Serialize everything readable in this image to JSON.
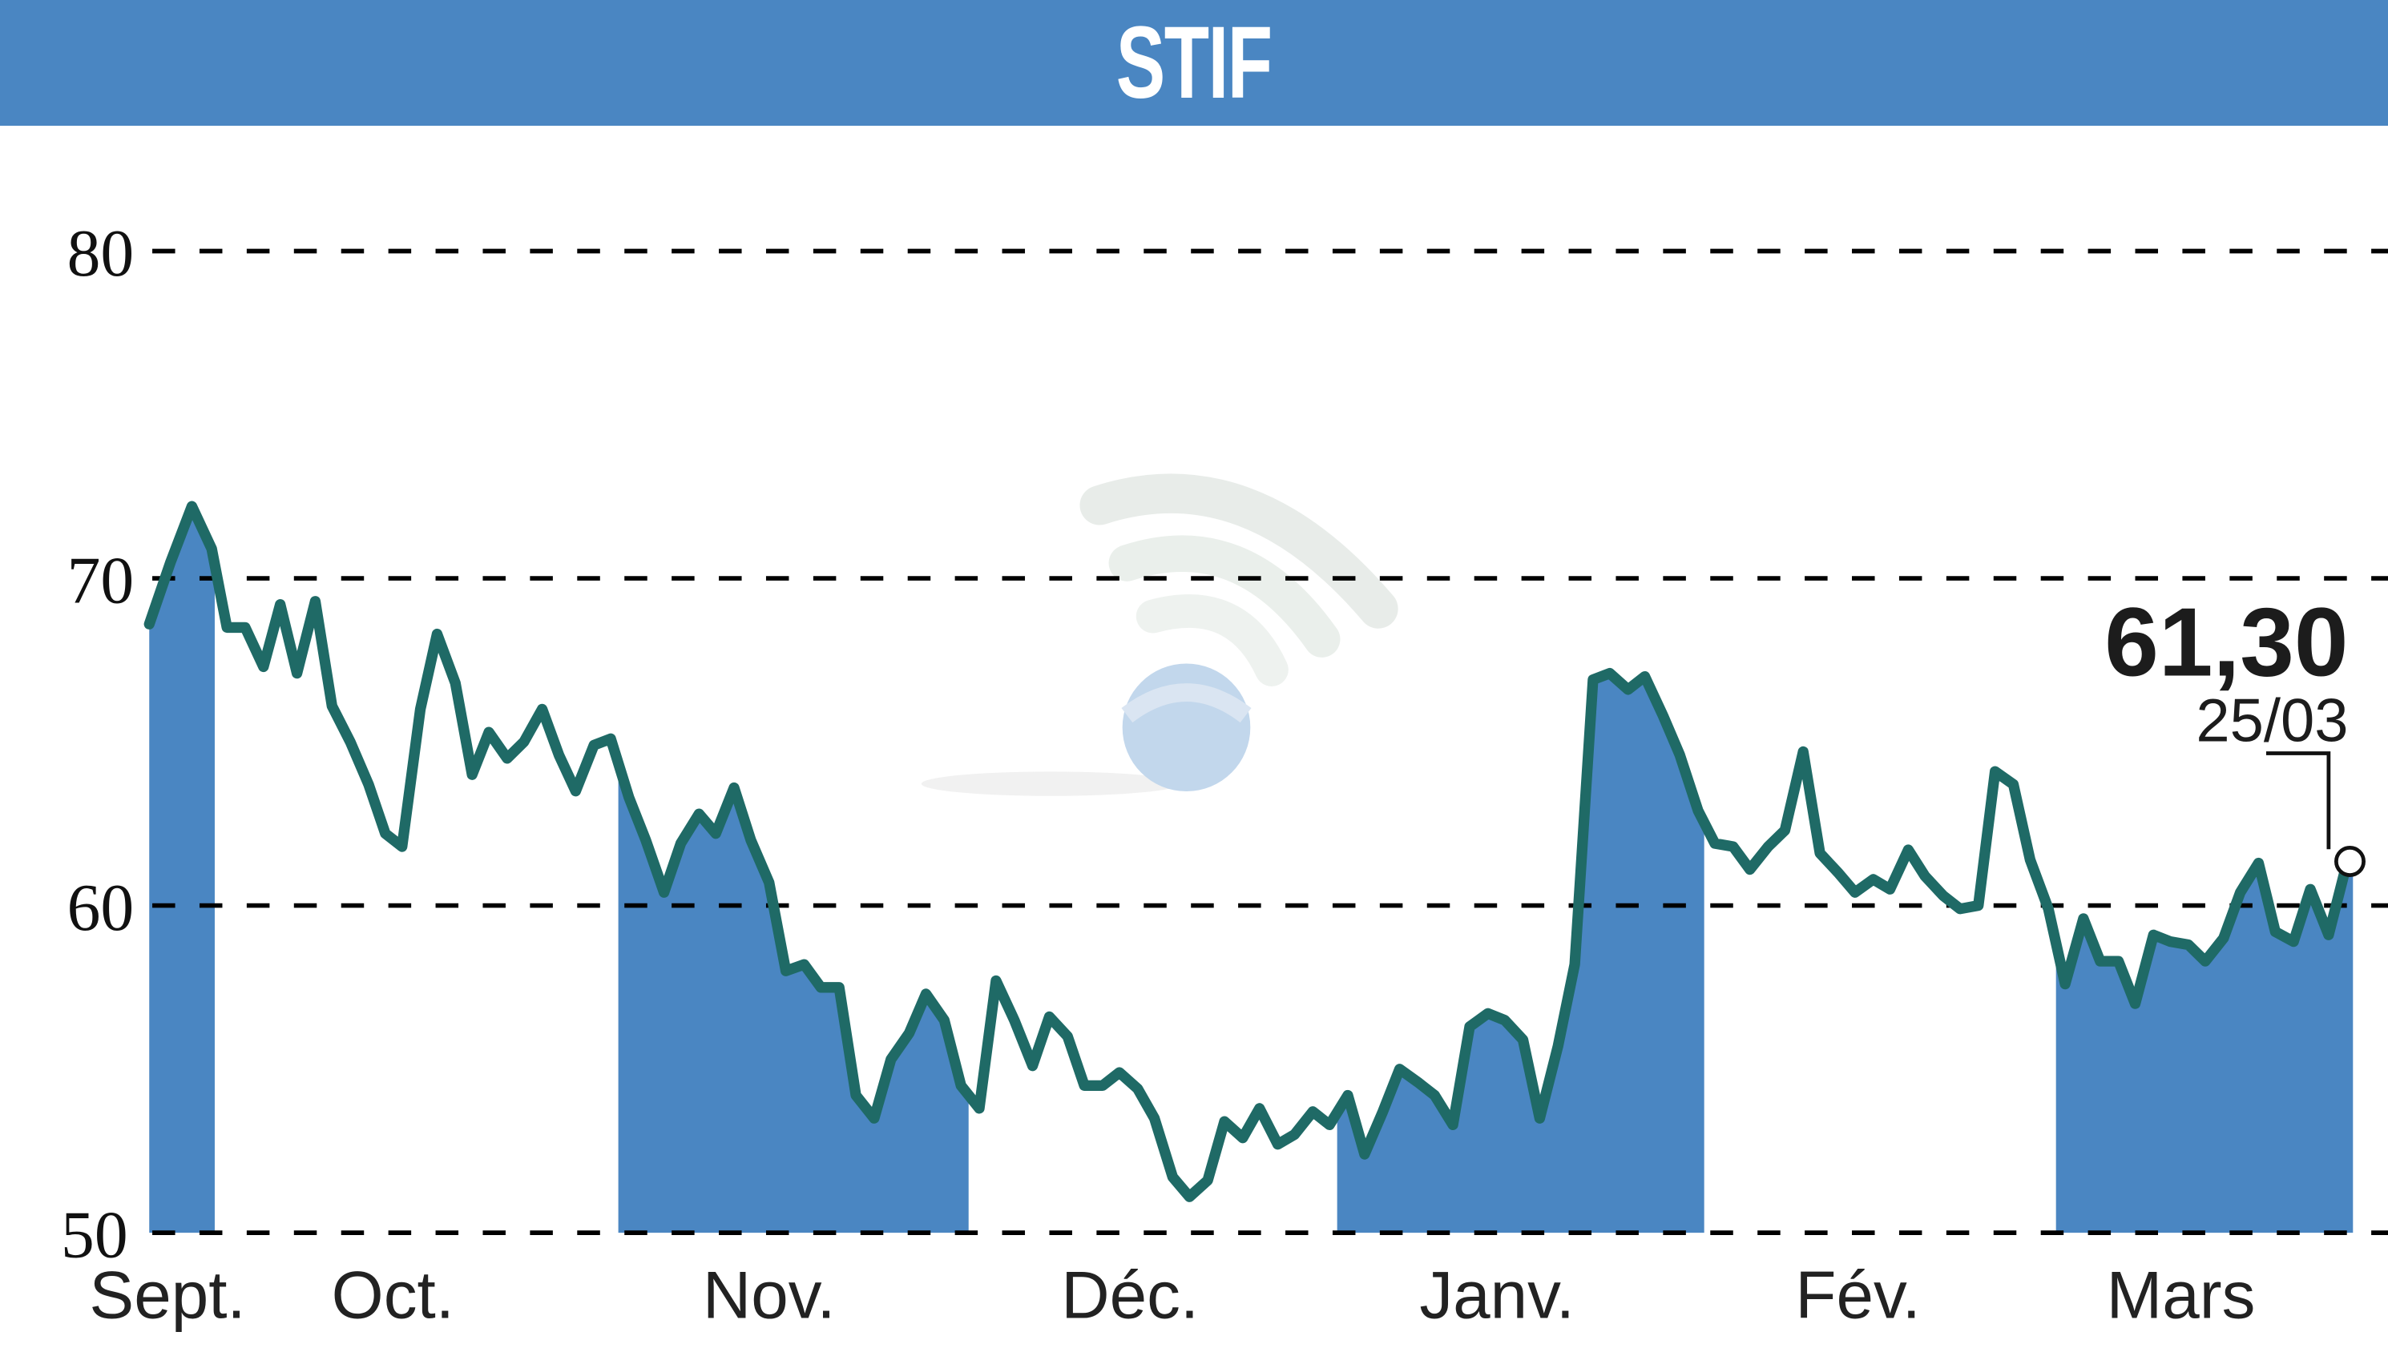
{
  "header": {
    "title": "STIF"
  },
  "colors": {
    "header_bg": "#4a86c2",
    "band_fill": "#4a86c2",
    "line": "#1f6a66",
    "grid": "#000000",
    "watermark_ball": "#bcd3ea",
    "watermark_waves": "#e4ebe6"
  },
  "annotation": {
    "value": "61,30",
    "date": "25/03"
  },
  "chart_data": {
    "type": "line",
    "title": "STIF",
    "xlabel": "",
    "ylabel": "",
    "ylim": [
      50,
      80
    ],
    "yticks": [
      50,
      60,
      70,
      80
    ],
    "ytick_labels": [
      "50",
      "60",
      "70",
      "80"
    ],
    "grid": "horizontal dashed",
    "month_labels": [
      "Sept.",
      "Oct.",
      "Nov.",
      "Déc.",
      "Janv.",
      "Fév.",
      "Mars"
    ],
    "shaded_month_bands": [
      "Sept.",
      "Nov.",
      "Janv.",
      "Mars"
    ],
    "last_value": 61.3,
    "last_date": "25/03",
    "series": [
      {
        "name": "STIF",
        "points_display": [
          [
            98,
            68.6
          ],
          [
            112,
            70.5
          ],
          [
            126,
            72.2
          ],
          [
            139,
            70.9
          ],
          [
            149,
            68.5
          ],
          [
            161,
            68.5
          ],
          [
            173,
            67.3
          ],
          [
            184,
            69.2
          ],
          [
            195,
            67.1
          ],
          [
            207,
            69.3
          ],
          [
            218,
            66.1
          ],
          [
            230,
            65.0
          ],
          [
            242,
            63.7
          ],
          [
            253,
            62.2
          ],
          [
            264,
            61.8
          ],
          [
            276,
            66.0
          ],
          [
            287,
            68.3
          ],
          [
            299,
            66.8
          ],
          [
            310,
            64.0
          ],
          [
            321,
            65.3
          ],
          [
            333,
            64.5
          ],
          [
            344,
            65.0
          ],
          [
            356,
            66.0
          ],
          [
            367,
            64.6
          ],
          [
            378,
            63.5
          ],
          [
            390,
            64.9
          ],
          [
            401,
            65.1
          ],
          [
            413,
            63.3
          ],
          [
            424,
            62.0
          ],
          [
            436,
            60.4
          ],
          [
            447,
            61.9
          ],
          [
            459,
            62.8
          ],
          [
            470,
            62.2
          ],
          [
            482,
            63.6
          ],
          [
            493,
            62.0
          ],
          [
            505,
            60.7
          ],
          [
            516,
            58.0
          ],
          [
            528,
            58.2
          ],
          [
            539,
            57.5
          ],
          [
            551,
            57.5
          ],
          [
            562,
            54.2
          ],
          [
            574,
            53.5
          ],
          [
            585,
            55.3
          ],
          [
            597,
            56.1
          ],
          [
            608,
            57.3
          ],
          [
            620,
            56.5
          ],
          [
            631,
            54.5
          ],
          [
            643,
            53.8
          ],
          [
            654,
            57.7
          ],
          [
            666,
            56.5
          ],
          [
            678,
            55.1
          ],
          [
            689,
            56.6
          ],
          [
            701,
            56.0
          ],
          [
            712,
            54.5
          ],
          [
            724,
            54.5
          ],
          [
            735,
            54.9
          ],
          [
            747,
            54.4
          ],
          [
            758,
            53.5
          ],
          [
            770,
            51.7
          ],
          [
            781,
            51.1
          ],
          [
            793,
            51.6
          ],
          [
            804,
            53.4
          ],
          [
            816,
            52.9
          ],
          [
            827,
            53.8
          ],
          [
            839,
            52.7
          ],
          [
            850,
            53.0
          ],
          [
            862,
            53.7
          ],
          [
            873,
            53.3
          ],
          [
            885,
            54.2
          ],
          [
            896,
            52.4
          ],
          [
            908,
            53.7
          ],
          [
            919,
            55.0
          ],
          [
            931,
            54.6
          ],
          [
            942,
            54.2
          ],
          [
            954,
            53.3
          ],
          [
            965,
            56.3
          ],
          [
            977,
            56.7
          ],
          [
            988,
            56.5
          ],
          [
            1000,
            55.9
          ],
          [
            1011,
            53.5
          ],
          [
            1023,
            55.7
          ],
          [
            1034,
            58.2
          ],
          [
            1046,
            66.9
          ],
          [
            1057,
            67.1
          ],
          [
            1069,
            66.6
          ],
          [
            1080,
            67.0
          ],
          [
            1092,
            65.8
          ],
          [
            1103,
            64.6
          ],
          [
            1115,
            62.9
          ],
          [
            1126,
            61.9
          ],
          [
            1138,
            61.8
          ],
          [
            1149,
            61.1
          ],
          [
            1161,
            61.8
          ],
          [
            1172,
            62.3
          ],
          [
            1184,
            64.7
          ],
          [
            1195,
            61.6
          ],
          [
            1207,
            61.0
          ],
          [
            1218,
            60.4
          ],
          [
            1230,
            60.8
          ],
          [
            1241,
            60.5
          ],
          [
            1253,
            61.7
          ],
          [
            1264,
            60.9
          ],
          [
            1276,
            60.3
          ],
          [
            1287,
            59.9
          ],
          [
            1299,
            60.0
          ],
          [
            1310,
            64.1
          ],
          [
            1322,
            63.7
          ],
          [
            1333,
            61.4
          ],
          [
            1345,
            59.9
          ],
          [
            1356,
            57.6
          ],
          [
            1368,
            59.6
          ],
          [
            1379,
            58.3
          ],
          [
            1391,
            58.3
          ],
          [
            1402,
            57.0
          ],
          [
            1414,
            59.1
          ],
          [
            1425,
            58.9
          ],
          [
            1437,
            58.8
          ],
          [
            1448,
            58.3
          ],
          [
            1460,
            59.0
          ],
          [
            1471,
            60.4
          ],
          [
            1483,
            61.3
          ],
          [
            1494,
            59.2
          ],
          [
            1506,
            58.9
          ],
          [
            1517,
            60.5
          ],
          [
            1529,
            59.1
          ],
          [
            1541,
            61.3
          ]
        ]
      }
    ]
  }
}
